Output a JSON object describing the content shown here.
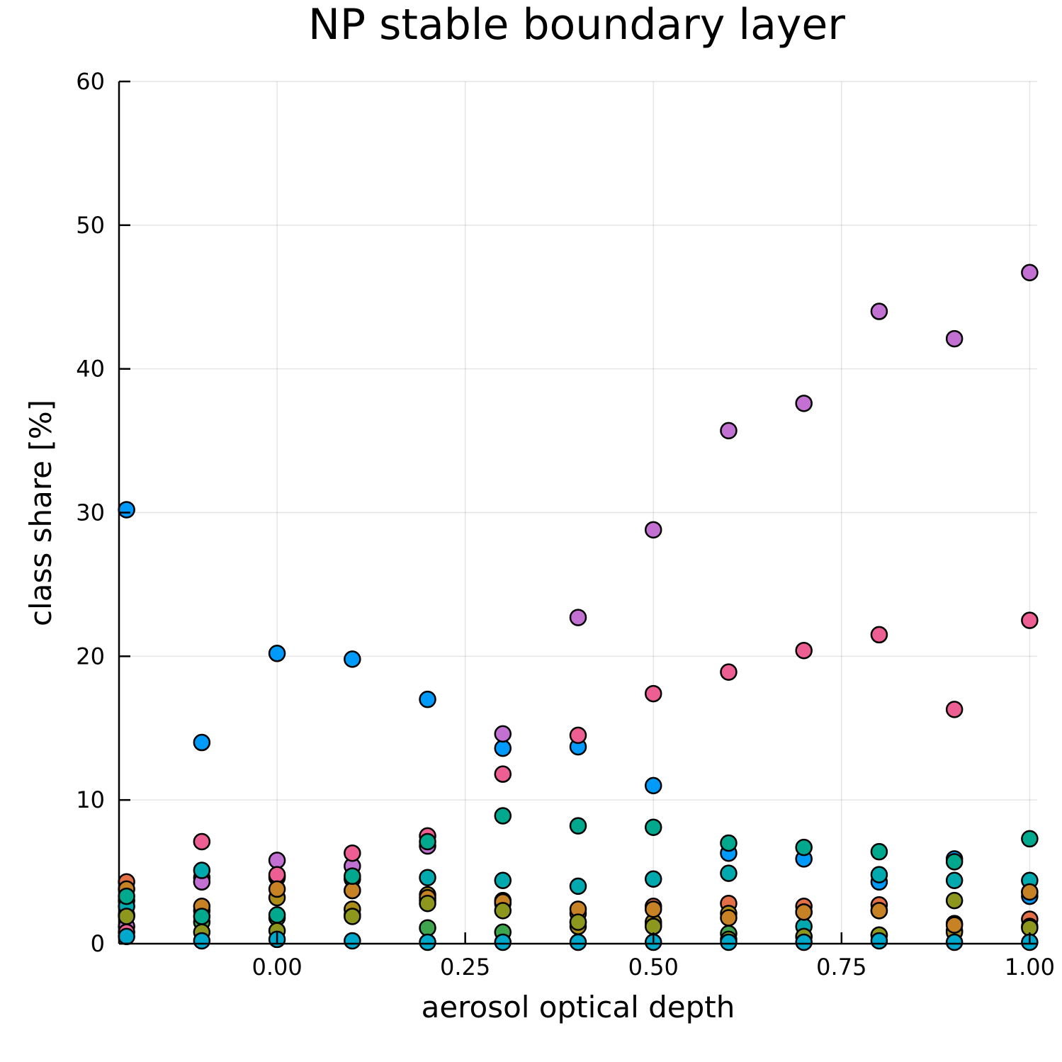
{
  "chart_data": {
    "type": "scatter",
    "title": "NP stable boundary layer",
    "xlabel": "aerosol optical depth",
    "ylabel": "class share [%]",
    "xlim": [
      -0.21,
      1.01
    ],
    "ylim": [
      0,
      60
    ],
    "xticks": [
      {
        "value": 0.0,
        "label": "0.00"
      },
      {
        "value": 0.25,
        "label": "0.25"
      },
      {
        "value": 0.5,
        "label": "0.50"
      },
      {
        "value": 0.75,
        "label": "0.75"
      },
      {
        "value": 1.0,
        "label": "1.00"
      }
    ],
    "yticks": [
      {
        "value": 0,
        "label": "0"
      },
      {
        "value": 10,
        "label": "10"
      },
      {
        "value": 20,
        "label": "20"
      },
      {
        "value": 30,
        "label": "30"
      },
      {
        "value": 40,
        "label": "40"
      },
      {
        "value": 50,
        "label": "50"
      },
      {
        "value": 60,
        "label": "60"
      }
    ],
    "grid": true,
    "legend": "none",
    "x": [
      -0.2,
      -0.1,
      0.0,
      0.1,
      0.2,
      0.3,
      0.4,
      0.5,
      0.6,
      0.7,
      0.8,
      0.9,
      1.0
    ],
    "series": [
      {
        "color": "#009AFA",
        "values": [
          30.2,
          14.0,
          20.2,
          19.8,
          17.0,
          13.6,
          13.7,
          11.0,
          6.3,
          5.9,
          4.3,
          5.9,
          3.3
        ]
      },
      {
        "color": "#E36F47",
        "values": [
          4.3,
          4.6,
          4.6,
          3.7,
          3.0,
          2.8,
          2.1,
          2.6,
          2.8,
          2.6,
          2.7,
          1.4,
          1.7
        ]
      },
      {
        "color": "#3EA44E",
        "values": [
          2.0,
          1.5,
          1.8,
          2.0,
          1.1,
          0.8,
          1.5,
          1.3,
          0.7,
          0.5,
          0.6,
          0.9,
          1.2
        ]
      },
      {
        "color": "#C271D2",
        "values": [
          1.2,
          4.3,
          5.8,
          5.4,
          6.8,
          14.6,
          22.7,
          28.8,
          35.7,
          37.6,
          44.0,
          42.1,
          46.7
        ]
      },
      {
        "color": "#AC8D18",
        "values": [
          3.0,
          2.3,
          3.2,
          2.4,
          3.4,
          3.0,
          1.2,
          1.5,
          2.1,
          2.2,
          2.3,
          0.8,
          3.6
        ]
      },
      {
        "color": "#00A9AD",
        "values": [
          2.6,
          5.1,
          4.7,
          4.5,
          4.6,
          4.4,
          4.0,
          4.5,
          4.9,
          1.2,
          4.8,
          4.4,
          4.4
        ]
      },
      {
        "color": "#ED5E93",
        "values": [
          0.8,
          7.1,
          4.8,
          6.3,
          7.5,
          11.8,
          14.5,
          17.4,
          18.9,
          20.4,
          21.5,
          16.3,
          22.5
        ]
      },
      {
        "color": "#C68225",
        "values": [
          3.8,
          2.6,
          3.8,
          3.7,
          3.2,
          2.9,
          2.4,
          2.4,
          1.8,
          2.2,
          2.3,
          1.3,
          3.6
        ]
      },
      {
        "color": "#00A98D",
        "values": [
          3.3,
          1.9,
          2.0,
          4.7,
          7.1,
          8.9,
          8.2,
          8.1,
          7.0,
          6.7,
          6.4,
          5.7,
          7.3
        ]
      },
      {
        "color": "#8E971D",
        "values": [
          1.9,
          0.8,
          0.9,
          1.9,
          2.8,
          2.3,
          1.5,
          1.2,
          0.3,
          0.5,
          0.6,
          3.0,
          1.1
        ]
      },
      {
        "color": "#00A8CB",
        "values": [
          0.5,
          0.2,
          0.3,
          0.2,
          0.1,
          0.1,
          0.1,
          0.1,
          0.1,
          0.1,
          0.2,
          0.1,
          0.1
        ]
      }
    ]
  }
}
